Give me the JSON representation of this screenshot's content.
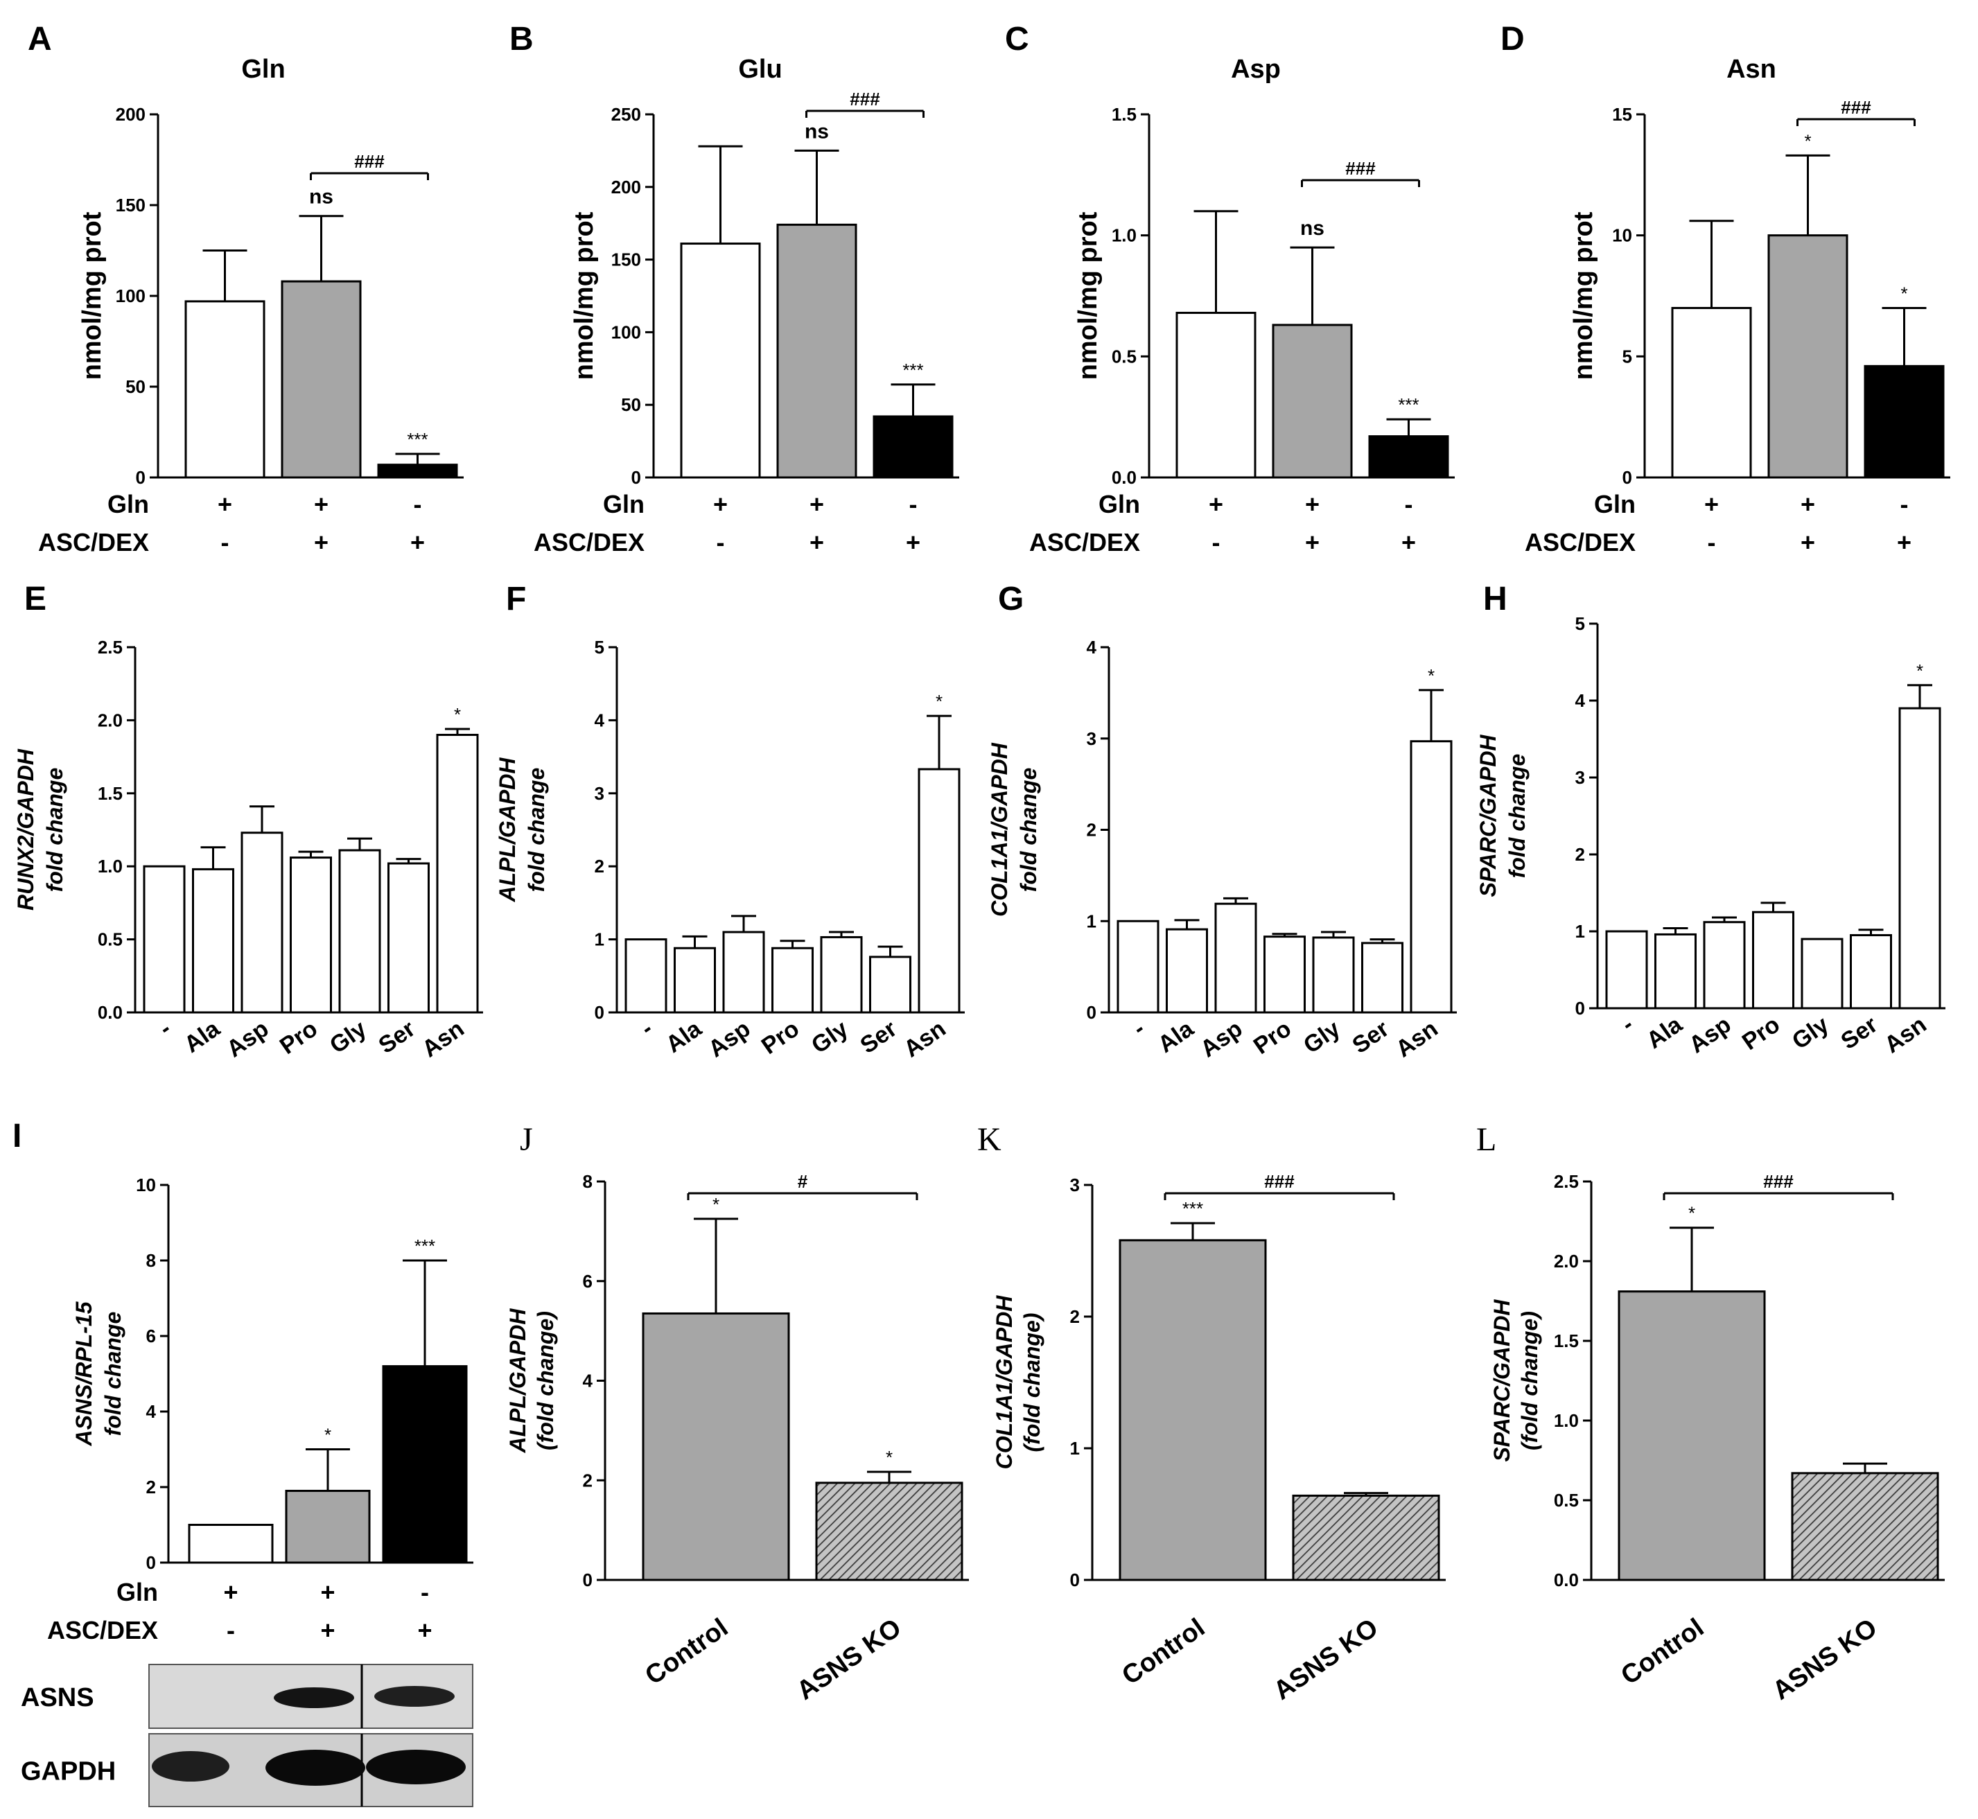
{
  "chart_data": [
    {
      "letter": "A",
      "type": "bar",
      "title": "Gln",
      "ylabel": "nmol/mg prot",
      "ylim": [
        0,
        200
      ],
      "ticks": [
        0,
        50,
        100,
        150,
        200
      ],
      "values": [
        97,
        108,
        7
      ],
      "errors": [
        28,
        36,
        6
      ],
      "fills": [
        "white",
        "gray",
        "black"
      ],
      "marks": [
        "",
        "ns",
        "***"
      ],
      "bracket": {
        "from": 1,
        "to": 2,
        "label": "###"
      },
      "cond_rows": [
        {
          "label": "Gln",
          "values": [
            "+",
            "+",
            "-"
          ]
        },
        {
          "label": "ASC/DEX",
          "values": [
            "-",
            "+",
            "+"
          ]
        }
      ]
    },
    {
      "letter": "B",
      "type": "bar",
      "title": "Glu",
      "ylabel": "nmol/mg prot",
      "ylim": [
        0,
        250
      ],
      "ticks": [
        0,
        50,
        100,
        150,
        200,
        250
      ],
      "values": [
        161,
        174,
        42
      ],
      "errors": [
        67,
        51,
        22
      ],
      "fills": [
        "white",
        "gray",
        "black"
      ],
      "marks": [
        "",
        "ns",
        "***"
      ],
      "bracket": {
        "from": 1,
        "to": 2,
        "label": "###"
      },
      "cond_rows": [
        {
          "label": "Gln",
          "values": [
            "+",
            "+",
            "-"
          ]
        },
        {
          "label": "ASC/DEX",
          "values": [
            "-",
            "+",
            "+"
          ]
        }
      ]
    },
    {
      "letter": "C",
      "type": "bar",
      "title": "Asp",
      "ylabel": "nmol/mg prot",
      "ylim": [
        0,
        1.5
      ],
      "ticks": [
        "0.0",
        "0.5",
        "1.0",
        "1.5"
      ],
      "values": [
        0.68,
        0.63,
        0.17
      ],
      "errors": [
        0.42,
        0.32,
        0.07
      ],
      "fills": [
        "white",
        "gray",
        "black"
      ],
      "marks": [
        "",
        "ns",
        "***"
      ],
      "bracket": {
        "from": 1,
        "to": 2,
        "label": "###"
      },
      "cond_rows": [
        {
          "label": "Gln",
          "values": [
            "+",
            "+",
            "-"
          ]
        },
        {
          "label": "ASC/DEX",
          "values": [
            "-",
            "+",
            "+"
          ]
        }
      ]
    },
    {
      "letter": "D",
      "type": "bar",
      "title": "Asn",
      "ylabel": "nmol/mg prot",
      "ylim": [
        0,
        15
      ],
      "ticks": [
        0,
        5,
        10,
        15
      ],
      "values": [
        7.0,
        10.0,
        4.6
      ],
      "errors": [
        3.6,
        3.3,
        2.4
      ],
      "fills": [
        "white",
        "gray",
        "black"
      ],
      "marks": [
        "",
        "*",
        "*"
      ],
      "bracket": {
        "from": 1,
        "to": 2,
        "label": "###"
      },
      "cond_rows": [
        {
          "label": "Gln",
          "values": [
            "+",
            "+",
            "-"
          ]
        },
        {
          "label": "ASC/DEX",
          "values": [
            "-",
            "+",
            "+"
          ]
        }
      ]
    },
    {
      "letter": "E",
      "type": "bar",
      "gene": "RUNX2/GAPDH",
      "ylabel2": "fold change",
      "ylim": [
        0,
        2.5
      ],
      "ticks": [
        "0.0",
        "0.5",
        "1.0",
        "1.5",
        "2.0",
        "2.5"
      ],
      "categories": [
        "-",
        "Ala",
        "Asp",
        "Pro",
        "Gly",
        "Ser",
        "Asn"
      ],
      "values": [
        1.0,
        0.98,
        1.23,
        1.06,
        1.11,
        1.02,
        1.9
      ],
      "errors": [
        0,
        0.15,
        0.18,
        0.04,
        0.08,
        0.03,
        0.04
      ],
      "marks": [
        "",
        "",
        "",
        "",
        "",
        "",
        "*"
      ]
    },
    {
      "letter": "F",
      "type": "bar",
      "gene": "ALPL/GAPDH",
      "ylabel2": "fold change",
      "ylim": [
        0,
        5
      ],
      "ticks": [
        0,
        1,
        2,
        3,
        4,
        5
      ],
      "categories": [
        "-",
        "Ala",
        "Asp",
        "Pro",
        "Gly",
        "Ser",
        "Asn"
      ],
      "values": [
        1.0,
        0.88,
        1.1,
        0.88,
        1.03,
        0.76,
        3.33
      ],
      "errors": [
        0,
        0.16,
        0.22,
        0.1,
        0.07,
        0.14,
        0.73
      ],
      "marks": [
        "",
        "",
        "",
        "",
        "",
        "",
        "*"
      ]
    },
    {
      "letter": "G",
      "type": "bar",
      "gene": "COL1A1/GAPDH",
      "ylabel2": "fold change",
      "ylim": [
        0,
        4
      ],
      "ticks": [
        0,
        1,
        2,
        3,
        4
      ],
      "categories": [
        "-",
        "Ala",
        "Asp",
        "Pro",
        "Gly",
        "Ser",
        "Asn"
      ],
      "values": [
        1.0,
        0.91,
        1.19,
        0.83,
        0.82,
        0.76,
        2.97
      ],
      "errors": [
        0,
        0.1,
        0.06,
        0.03,
        0.06,
        0.04,
        0.56
      ],
      "marks": [
        "",
        "",
        "",
        "",
        "",
        "",
        "*"
      ]
    },
    {
      "letter": "H",
      "type": "bar",
      "gene": "SPARC/GAPDH",
      "ylabel2": "fold change",
      "ylim": [
        0,
        5
      ],
      "ticks": [
        0,
        1,
        2,
        3,
        4,
        5
      ],
      "categories": [
        "-",
        "Ala",
        "Asp",
        "Pro",
        "Gly",
        "Ser",
        "Asn"
      ],
      "values": [
        1.0,
        0.96,
        1.12,
        1.25,
        0.9,
        0.95,
        3.9
      ],
      "errors": [
        0,
        0.08,
        0.06,
        0.12,
        0,
        0.07,
        0.3
      ],
      "marks": [
        "",
        "",
        "",
        "",
        "",
        "",
        "*"
      ]
    },
    {
      "letter": "I",
      "type": "bar",
      "gene": "ASNS/RPL-15",
      "ylabel2": "fold change",
      "ylim": [
        0,
        10
      ],
      "ticks": [
        0,
        2,
        4,
        6,
        8,
        10
      ],
      "values": [
        1.0,
        1.9,
        5.2
      ],
      "errors": [
        0,
        1.1,
        2.8
      ],
      "fills": [
        "white",
        "gray",
        "black"
      ],
      "marks": [
        "",
        "*",
        "***"
      ],
      "cond_rows": [
        {
          "label": "Gln",
          "values": [
            "+",
            "+",
            "-"
          ]
        },
        {
          "label": "ASC/DEX",
          "values": [
            "-",
            "+",
            "+"
          ]
        }
      ],
      "blot": {
        "rows": [
          "ASNS",
          "GAPDH"
        ]
      }
    },
    {
      "letter": "J",
      "type": "bar",
      "ylabel": "ALPL/GAPDH",
      "ylabel2": "(fold change)",
      "ylim": [
        0,
        8
      ],
      "ticks": [
        0,
        2,
        4,
        6,
        8
      ],
      "categories": [
        "Control",
        "ASNS KO"
      ],
      "values": [
        5.35,
        1.95
      ],
      "errors": [
        1.9,
        0.22
      ],
      "marks": [
        "*",
        "*"
      ],
      "bracket": {
        "from": 0,
        "to": 1,
        "label": "#"
      }
    },
    {
      "letter": "K",
      "type": "bar",
      "ylabel": "COL1A1/GAPDH",
      "ylabel2": "(fold change)",
      "ylim": [
        0,
        3
      ],
      "ticks": [
        0,
        1,
        2,
        3
      ],
      "categories": [
        "Control",
        "ASNS KO"
      ],
      "values": [
        2.58,
        0.64
      ],
      "errors": [
        0.13,
        0.02
      ],
      "marks": [
        "***",
        ""
      ],
      "bracket": {
        "from": 0,
        "to": 1,
        "label": "###"
      }
    },
    {
      "letter": "L",
      "type": "bar",
      "ylabel": "SPARC/GAPDH",
      "ylabel2": "(fold change)",
      "ylim": [
        0,
        2.5
      ],
      "ticks": [
        "0.0",
        "0.5",
        "1.0",
        "1.5",
        "2.0",
        "2.5"
      ],
      "categories": [
        "Control",
        "ASNS KO"
      ],
      "values": [
        1.81,
        0.67
      ],
      "errors": [
        0.4,
        0.06
      ],
      "marks": [
        "*",
        ""
      ],
      "bracket": {
        "from": 0,
        "to": 1,
        "label": "###"
      }
    }
  ]
}
